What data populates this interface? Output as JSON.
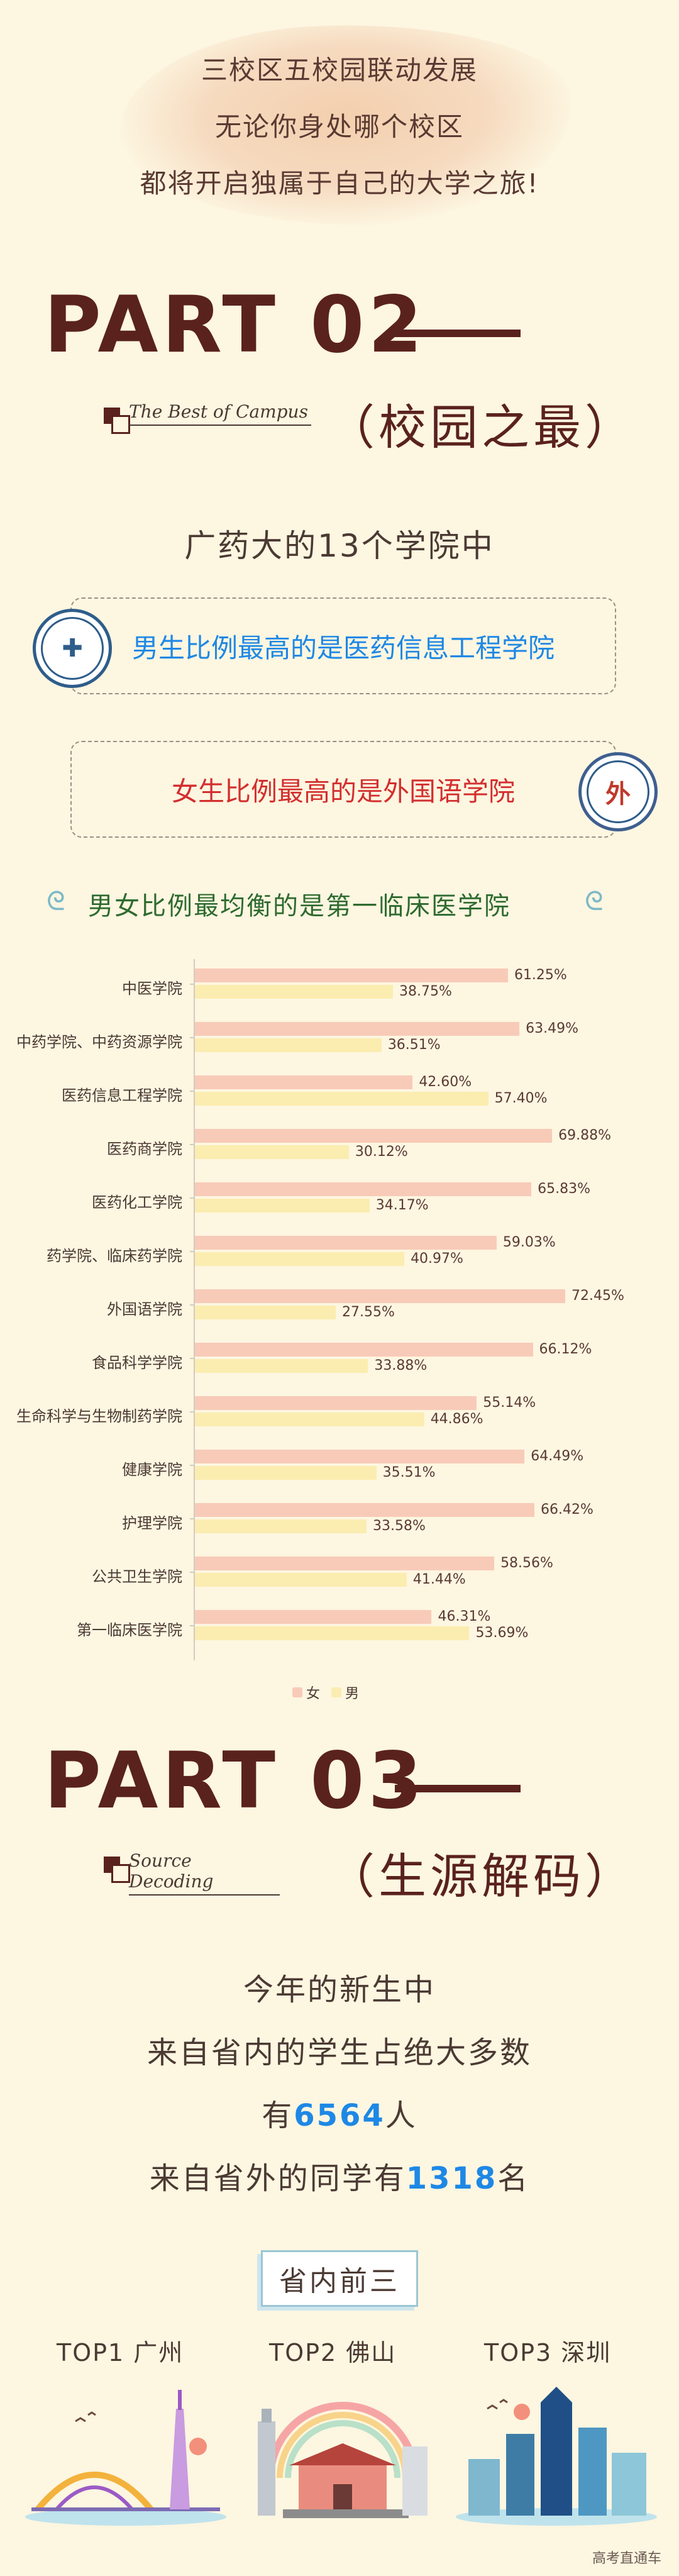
{
  "intro": {
    "lines": [
      "三校区五校园联动发展",
      "无论你身处哪个校区",
      "都将开启独属于自己的大学之旅!"
    ]
  },
  "part2": {
    "title": "PART 02",
    "subtitle_en": "The Best of Campus",
    "subtitle_cn": "（校园之最）",
    "lead": "广药大的13个学院中",
    "card_male": "男生比例最高的是医药信息工程学院",
    "card_female": "女生比例最高的是外国语学院",
    "balanced": "男女比例最均衡的是第一临床医学院",
    "colors": {
      "male_text": "#1e88e5",
      "female_text": "#d32f2f",
      "balanced_text": "#2e6b2f"
    }
  },
  "chart_data": {
    "type": "bar",
    "orientation": "horizontal",
    "categories": [
      "中医学院",
      "中药学院、中药资源学院",
      "医药信息工程学院",
      "医药商学院",
      "医药化工学院",
      "药学院、临床药学院",
      "外国语学院",
      "食品科学学院",
      "生命科学与生物制药学院",
      "健康学院",
      "护理学院",
      "公共卫生学院",
      "第一临床医学院"
    ],
    "series": [
      {
        "name": "女",
        "color": "#f8cbb8",
        "values": [
          61.25,
          63.49,
          42.6,
          69.88,
          65.83,
          59.03,
          72.45,
          66.12,
          55.14,
          64.49,
          66.42,
          58.56,
          46.31
        ],
        "labels": [
          "61.25%",
          "63.49%",
          "42.60%",
          "69.88%",
          "65.83%",
          "59.03%",
          "72.45%",
          "66.12%",
          "55.14%",
          "64.49%",
          "66.42%",
          "58.56%",
          "46.31%"
        ]
      },
      {
        "name": "男",
        "color": "#fbedb0",
        "values": [
          38.75,
          36.51,
          57.4,
          30.12,
          34.17,
          40.97,
          27.55,
          33.88,
          44.86,
          35.51,
          33.58,
          41.44,
          53.69
        ],
        "labels": [
          "38.75%",
          "36.51%",
          "57.40%",
          "30.12%",
          "34.17%",
          "40.97%",
          "27.55%",
          "33.88%",
          "44.86%",
          "35.51%",
          "33.58%",
          "41.44%",
          "53.69%"
        ]
      }
    ],
    "xlim": [
      0,
      75
    ],
    "legend": "bottom-center",
    "grid": false
  },
  "part3": {
    "title": "PART 03",
    "subtitle_en": "Source Decoding",
    "subtitle_cn": "（生源解码）",
    "line1": "今年的新生中",
    "line2": "来自省内的学生占绝大多数",
    "line3_prefix": "有",
    "line3_num": "6564",
    "line3_suffix": "人",
    "line4_prefix": "来自省外的同学有",
    "line4_num": "1318",
    "line4_suffix": "名",
    "tag": "省内前三",
    "cities": [
      "TOP1  广州",
      "TOP2  佛山",
      "TOP3  深圳"
    ]
  },
  "watermark": "高考直通车"
}
